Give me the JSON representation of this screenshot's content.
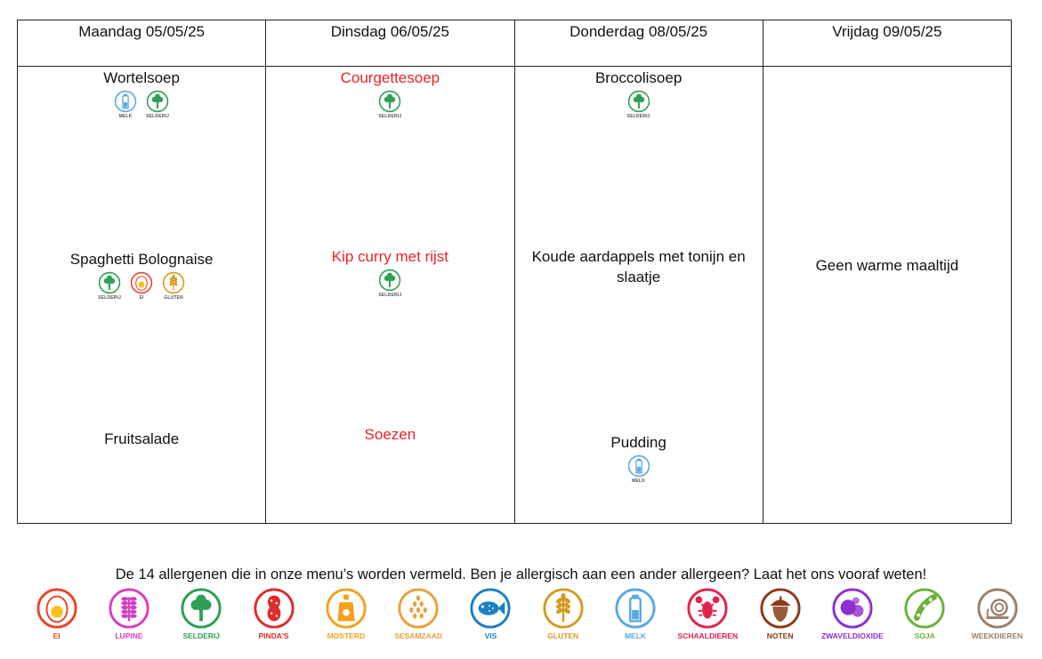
{
  "days": [
    {
      "title": "Maandag 05/05/25",
      "dishes": [
        {
          "name": "Wortelsoep",
          "red": false,
          "allergens": [
            "melk",
            "selderij"
          ]
        },
        {
          "name": "Spaghetti Bolognaise",
          "red": false,
          "allergens": [
            "selderij",
            "ei",
            "gluten"
          ]
        },
        {
          "name": "Fruitsalade",
          "red": false,
          "allergens": []
        }
      ]
    },
    {
      "title": "Dinsdag 06/05/25",
      "dishes": [
        {
          "name": "Courgettesoep",
          "red": true,
          "allergens": [
            "selderij"
          ]
        },
        {
          "name": "Kip curry met rijst",
          "red": true,
          "allergens": [
            "selderij"
          ]
        },
        {
          "name": "Soezen",
          "red": true,
          "allergens": []
        }
      ]
    },
    {
      "title": "Donderdag 08/05/25",
      "dishes": [
        {
          "name": "Broccolisoep",
          "red": false,
          "allergens": [
            "selderij"
          ]
        },
        {
          "name": "Koude aardappels met tonijn en slaatje",
          "red": false,
          "allergens": []
        },
        {
          "name": "Pudding",
          "red": false,
          "allergens": [
            "melk"
          ]
        }
      ]
    },
    {
      "title": "Vrijdag 09/05/25",
      "dishes": [
        {
          "name": "Geen warme maaltijd",
          "red": false,
          "allergens": []
        }
      ]
    }
  ],
  "legend": {
    "caption": "De 14 allergenen die in onze menu’s worden vermeld. Ben je allergisch aan een ander allergeen? Laat het ons vooraf weten!",
    "items": [
      {
        "key": "ei",
        "label": "EI",
        "color": "#e8452c",
        "icon": "egg-icon"
      },
      {
        "key": "lupine",
        "label": "LUPINE",
        "color": "#d43fc0",
        "icon": "lupine-icon"
      },
      {
        "key": "selderij",
        "label": "SELDERIJ",
        "color": "#2e9f56",
        "icon": "celery-icon"
      },
      {
        "key": "pindas",
        "label": "PINDA'S",
        "color": "#e02b2b",
        "icon": "peanut-icon"
      },
      {
        "key": "mosterd",
        "label": "MOSTERD",
        "color": "#f4a11d",
        "icon": "mustard-icon"
      },
      {
        "key": "sesamzaad",
        "label": "SESAMZAAD",
        "color": "#e8a13c",
        "icon": "sesame-icon"
      },
      {
        "key": "vis",
        "label": "VIS",
        "color": "#1b7fc1",
        "icon": "fish-icon"
      },
      {
        "key": "gluten",
        "label": "GLUTEN",
        "color": "#d69a21",
        "icon": "wheat-icon"
      },
      {
        "key": "melk",
        "label": "MELK",
        "color": "#5aa9e3",
        "icon": "milk-icon"
      },
      {
        "key": "schaaldieren",
        "label": "SCHAALDIEREN",
        "color": "#e3234c",
        "icon": "lobster-icon"
      },
      {
        "key": "noten",
        "label": "NOTEN",
        "color": "#8a3a1a",
        "icon": "nut-icon"
      },
      {
        "key": "zwaveldioxide",
        "label": "ZWAVELDIOXIDE",
        "color": "#8e2fcf",
        "icon": "molecule-icon"
      },
      {
        "key": "soja",
        "label": "SOJA",
        "color": "#6bb23a",
        "icon": "soy-icon"
      },
      {
        "key": "weekdieren",
        "label": "WEEKDIEREN",
        "color": "#9a7f6c",
        "icon": "snail-icon"
      }
    ]
  }
}
